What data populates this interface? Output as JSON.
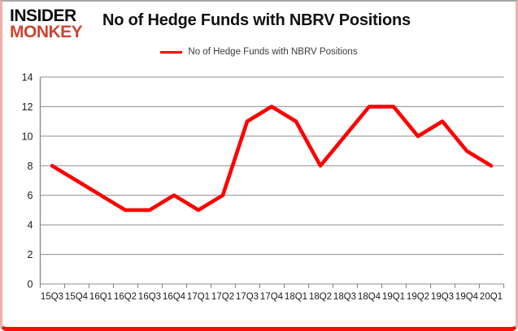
{
  "brand": {
    "line1": "INSIDER",
    "line2": "MONKEY",
    "logo_black": "#0d0d0d",
    "logo_red": "#cd4431"
  },
  "header": {
    "title": "No of Hedge Funds with NBRV Positions"
  },
  "legend": {
    "label": "No of Hedge Funds with NBRV Positions"
  },
  "colors": {
    "line": "#fe0000",
    "grid": "#8c8c8c",
    "axis": "#8c8c8c",
    "tick_text": "#1a1a1a",
    "border_pink": "#f2aeaa",
    "border_red": "#fb0d07"
  },
  "chart_data": {
    "type": "line",
    "title": "No of Hedge Funds with NBRV Positions",
    "legend": "No of Hedge Funds with NBRV Positions",
    "legend_position": "top-center",
    "grid": "horizontal",
    "categories": [
      "15Q3",
      "15Q4",
      "16Q1",
      "16Q2",
      "16Q3",
      "16Q4",
      "17Q1",
      "17Q2",
      "17Q3",
      "17Q4",
      "18Q1",
      "18Q2",
      "18Q3",
      "18Q4",
      "19Q1",
      "19Q2",
      "19Q3",
      "19Q4",
      "20Q1"
    ],
    "series": [
      {
        "name": "No of Hedge Funds with NBRV Positions",
        "values": [
          8,
          7,
          6,
          5,
          5,
          6,
          5,
          6,
          11,
          12,
          11,
          8,
          10,
          12,
          12,
          10,
          11,
          9,
          8
        ],
        "color": "#fe0000"
      }
    ],
    "xlabel": "",
    "ylabel": "",
    "ylim": [
      0,
      14
    ],
    "ytick_step": 2,
    "yticks": [
      0,
      2,
      4,
      6,
      8,
      10,
      12,
      14
    ]
  }
}
